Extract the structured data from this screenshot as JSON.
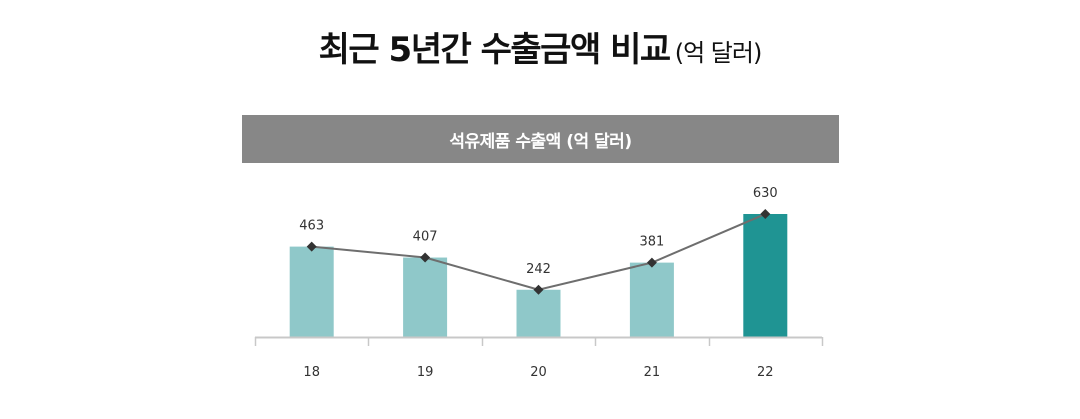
{
  "title": {
    "main": "최근 5년간 수출금액 비교",
    "unit": "(억 달러)"
  },
  "chart_data": {
    "type": "bar",
    "title": "석유제품 수출액 (억 달러)",
    "categories": [
      "18",
      "19",
      "20",
      "21",
      "22"
    ],
    "series": [
      {
        "name": "석유제품 수출액 (bar)",
        "values": [
          463,
          407,
          242,
          381,
          630
        ]
      },
      {
        "name": "석유제품 수출액 (line)",
        "values": [
          463,
          407,
          242,
          381,
          630
        ]
      }
    ],
    "xlabel": "",
    "ylabel": "",
    "grid": false,
    "legend": "none",
    "colors": {
      "bar": "#8fc8c9",
      "highlight_bar": "#1f9493",
      "line": "#6e6e6e",
      "marker": "#333333",
      "header": "#878787",
      "axis": "#c8c8c8"
    },
    "highlight_index": 4
  }
}
